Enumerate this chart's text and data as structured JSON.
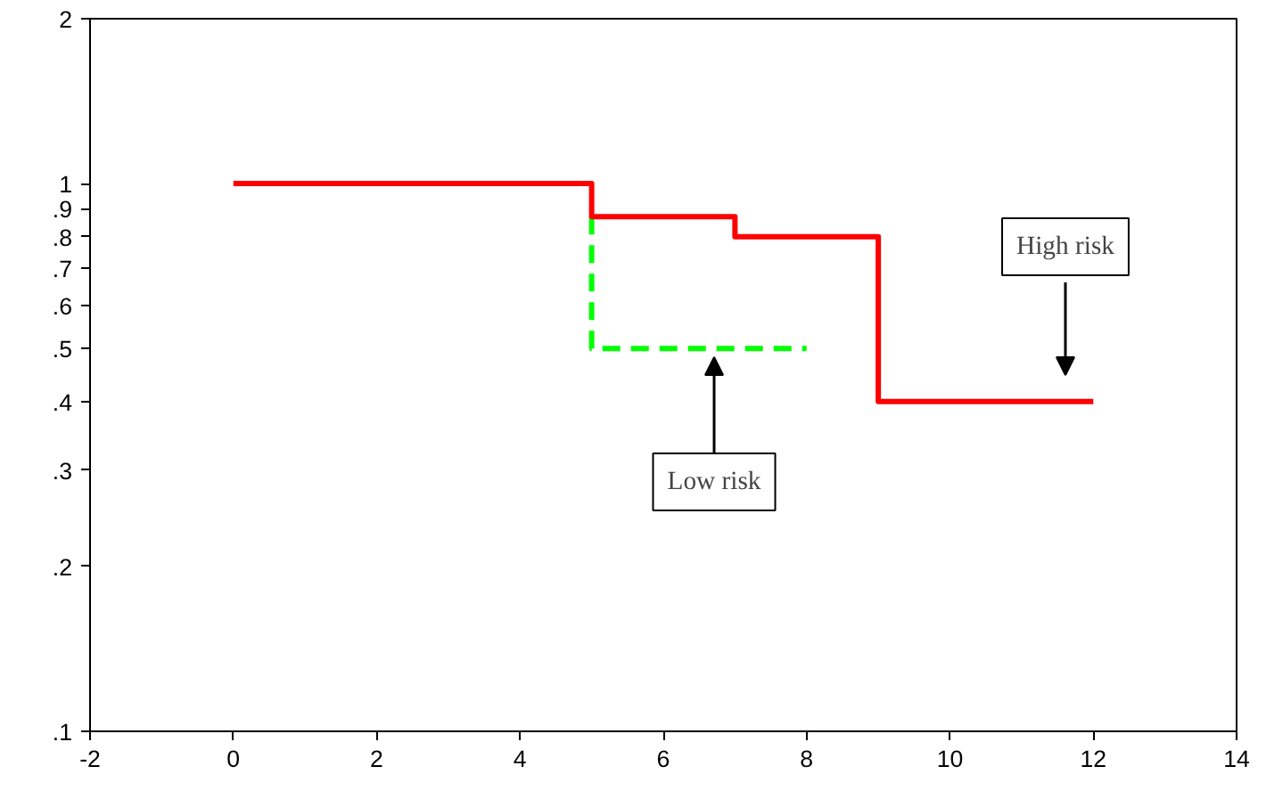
{
  "chart_data": {
    "type": "step",
    "log": "y",
    "series": [
      {
        "color": "#00ff00",
        "x": [
          5,
          5,
          8
        ],
        "values": [
          0.87,
          0.5,
          0.5
        ],
        "line_style": "dashed"
      },
      {
        "color": "#ff0000",
        "x": [
          0,
          5,
          7,
          9,
          12
        ],
        "values": [
          1,
          0.87,
          0.8,
          0.4,
          0.4
        ],
        "line_style": "solid"
      }
    ],
    "xlim": [
      -2,
      14
    ],
    "xticks": [
      -2,
      0,
      2,
      4,
      6,
      8,
      10,
      12,
      14
    ],
    "ylim": [
      0.1,
      2
    ],
    "yticks": [
      {
        "value": 0.1,
        "label": ".1"
      },
      {
        "value": 0.2,
        "label": ".2"
      },
      {
        "value": 0.3,
        "label": ".3"
      },
      {
        "value": 0.4,
        "label": ".4"
      },
      {
        "value": 0.5,
        "label": ".5"
      },
      {
        "value": 0.6,
        "label": ".6"
      },
      {
        "value": 0.7,
        "label": ".7"
      },
      {
        "value": 0.8,
        "label": ".8"
      },
      {
        "value": 0.9,
        "label": ".9"
      },
      1,
      2
    ],
    "annotations": [
      "High risk",
      "Low risk"
    ],
    "grid": false,
    "marker": "none"
  }
}
